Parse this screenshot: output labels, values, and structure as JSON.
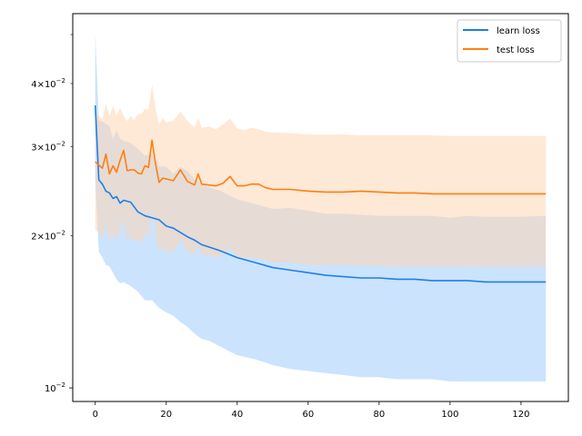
{
  "chart_data": {
    "type": "line",
    "title": "",
    "xlabel": "",
    "ylabel": "",
    "xlim": [
      -6.35,
      133.35
    ],
    "ylim": [
      0.0094,
      0.055
    ],
    "y_scale": "log",
    "grid": false,
    "legend_position": "top-right",
    "x_ticks": [
      0,
      20,
      40,
      60,
      80,
      100,
      120
    ],
    "x_tick_labels": [
      "0",
      "20",
      "40",
      "60",
      "80",
      "100",
      "120"
    ],
    "y_major_ticks": [
      0.01
    ],
    "y_major_tick_labels": [
      "10",
      "−2"
    ],
    "y_minor_ticks": [
      0.02,
      0.03,
      0.04,
      0.05
    ],
    "y_minor_tick_labels": [
      [
        "2",
        "10",
        "−2"
      ],
      [
        "3",
        "10",
        "−2"
      ],
      [
        "4",
        "10",
        "−2"
      ],
      null
    ],
    "series": [
      {
        "name": "learn loss",
        "color": "#1f7fe8",
        "band_color": "#a9d1fb",
        "x": [
          0,
          1,
          2,
          3,
          4,
          5,
          6,
          7,
          8,
          10,
          12,
          14,
          16,
          18,
          20,
          22,
          24,
          26,
          28,
          30,
          32,
          35,
          40,
          45,
          50,
          55,
          60,
          65,
          70,
          75,
          80,
          85,
          90,
          95,
          100,
          105,
          110,
          115,
          120,
          127
        ],
        "y": [
          0.0362,
          0.0258,
          0.0253,
          0.0245,
          0.0243,
          0.0237,
          0.0239,
          0.0232,
          0.0235,
          0.0233,
          0.0223,
          0.0219,
          0.0217,
          0.0215,
          0.0209,
          0.0207,
          0.0203,
          0.0199,
          0.0196,
          0.0192,
          0.019,
          0.0187,
          0.0181,
          0.0177,
          0.0173,
          0.0171,
          0.0169,
          0.0167,
          0.0166,
          0.0165,
          0.0165,
          0.0164,
          0.0164,
          0.0163,
          0.0163,
          0.0163,
          0.0162,
          0.0162,
          0.0162,
          0.0162
        ],
        "upper": [
          0.05,
          0.0338,
          0.0336,
          0.0333,
          0.0329,
          0.0311,
          0.0323,
          0.0311,
          0.0308,
          0.0305,
          0.0297,
          0.0288,
          0.029,
          0.0274,
          0.0274,
          0.0265,
          0.0274,
          0.0268,
          0.0259,
          0.0254,
          0.0249,
          0.0246,
          0.0236,
          0.0231,
          0.0226,
          0.0227,
          0.0224,
          0.0221,
          0.0221,
          0.022,
          0.0219,
          0.0219,
          0.0219,
          0.0219,
          0.0217,
          0.0219,
          0.0218,
          0.0218,
          0.0218,
          0.0219
        ],
        "lower": [
          0.026,
          0.0186,
          0.0181,
          0.0175,
          0.0174,
          0.0169,
          0.0164,
          0.0161,
          0.0162,
          0.0159,
          0.0155,
          0.0149,
          0.0149,
          0.0144,
          0.0141,
          0.0139,
          0.0135,
          0.0132,
          0.0128,
          0.0125,
          0.0124,
          0.0121,
          0.0116,
          0.0114,
          0.0111,
          0.0109,
          0.0108,
          0.0107,
          0.0106,
          0.0105,
          0.0105,
          0.0104,
          0.0104,
          0.0104,
          0.0103,
          0.0103,
          0.0103,
          0.0103,
          0.0103,
          0.0103
        ]
      },
      {
        "name": "test loss",
        "color": "#ff7f0e",
        "band_color": "#fdd6b4",
        "x": [
          0,
          1,
          2,
          3,
          4,
          5,
          6,
          7,
          8,
          9,
          10,
          11,
          12,
          13,
          14,
          15,
          16,
          17,
          18,
          19,
          20,
          22,
          24,
          26,
          28,
          29,
          30,
          32,
          34,
          36,
          38,
          40,
          42,
          44,
          46,
          48,
          50,
          55,
          60,
          65,
          70,
          75,
          80,
          85,
          90,
          95,
          100,
          105,
          110,
          115,
          120,
          127
        ],
        "y": [
          0.028,
          0.0276,
          0.0272,
          0.029,
          0.0265,
          0.0275,
          0.0267,
          0.0282,
          0.0295,
          0.0269,
          0.027,
          0.027,
          0.0266,
          0.0265,
          0.0275,
          0.0273,
          0.0309,
          0.0277,
          0.0255,
          0.026,
          0.0259,
          0.0257,
          0.027,
          0.0256,
          0.0252,
          0.0265,
          0.0253,
          0.0252,
          0.0251,
          0.0254,
          0.0262,
          0.0251,
          0.0251,
          0.0253,
          0.0253,
          0.0249,
          0.0247,
          0.0247,
          0.0245,
          0.0244,
          0.0244,
          0.0245,
          0.0244,
          0.0243,
          0.0243,
          0.0242,
          0.0242,
          0.0242,
          0.0242,
          0.0242,
          0.0242,
          0.0242
        ],
        "upper": [
          0.035,
          0.0345,
          0.034,
          0.0365,
          0.0345,
          0.0361,
          0.0345,
          0.0358,
          0.0345,
          0.0337,
          0.0345,
          0.0338,
          0.0348,
          0.0348,
          0.0356,
          0.0355,
          0.0398,
          0.0357,
          0.0332,
          0.0342,
          0.0335,
          0.0338,
          0.0352,
          0.0337,
          0.0327,
          0.0342,
          0.0327,
          0.0329,
          0.0325,
          0.0332,
          0.0341,
          0.0326,
          0.0323,
          0.0327,
          0.0325,
          0.0321,
          0.032,
          0.0319,
          0.0317,
          0.0317,
          0.0317,
          0.0316,
          0.0316,
          0.0316,
          0.0316,
          0.0316,
          0.0315,
          0.0315,
          0.0315,
          0.0315,
          0.0315,
          0.0315
        ],
        "lower": [
          0.0205,
          0.0203,
          0.0198,
          0.0212,
          0.0194,
          0.0203,
          0.0195,
          0.0205,
          0.0215,
          0.0195,
          0.0199,
          0.0195,
          0.0196,
          0.0194,
          0.0201,
          0.0199,
          0.0225,
          0.0202,
          0.0186,
          0.0189,
          0.0186,
          0.0186,
          0.0196,
          0.0186,
          0.0183,
          0.0192,
          0.0183,
          0.0183,
          0.0181,
          0.0184,
          0.0189,
          0.0181,
          0.018,
          0.0181,
          0.018,
          0.0179,
          0.0177,
          0.0177,
          0.0175,
          0.0175,
          0.0175,
          0.0175,
          0.0174,
          0.0174,
          0.0174,
          0.0174,
          0.0174,
          0.0174,
          0.0174,
          0.0174,
          0.0174,
          0.0174
        ]
      }
    ]
  }
}
